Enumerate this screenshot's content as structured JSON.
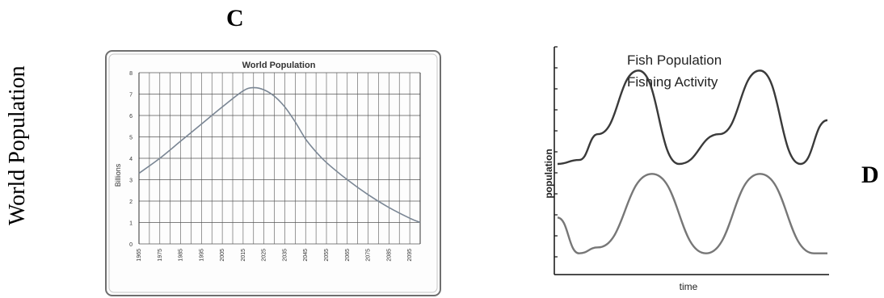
{
  "page": {
    "letter_left": "C",
    "letter_right": "D",
    "side_label": "World Population"
  },
  "chart_data": [
    {
      "type": "line",
      "title": "World Population",
      "xlabel": "",
      "ylabel": "Billions",
      "ylim": [
        0,
        8
      ],
      "yticks": [
        0,
        1,
        2,
        3,
        4,
        5,
        6,
        7,
        8
      ],
      "xlim": [
        1965,
        2100
      ],
      "xticks": [
        1965,
        1975,
        1985,
        1995,
        2005,
        2015,
        2025,
        2035,
        2045,
        2055,
        2065,
        2075,
        2085,
        2095
      ],
      "grid": true,
      "series": [
        {
          "x": [
            1965,
            1975,
            1985,
            1995,
            2005,
            2015,
            2020,
            2025,
            2030,
            2035,
            2040,
            2045,
            2050,
            2055,
            2065,
            2075,
            2085,
            2095,
            2100
          ],
          "y": [
            3.3,
            4.0,
            4.8,
            5.6,
            6.4,
            7.15,
            7.3,
            7.2,
            6.9,
            6.4,
            5.7,
            4.9,
            4.3,
            3.8,
            3.0,
            2.3,
            1.7,
            1.2,
            1.0
          ]
        }
      ],
      "line_color": "#7a8694"
    },
    {
      "type": "line",
      "title": "",
      "xlabel": "time",
      "ylabel": "population",
      "legend": [
        "Fish Population",
        "Fishing Activity"
      ],
      "legend_placement": "top",
      "grid": false,
      "series": [
        {
          "name": "Fish Population",
          "x": [
            0,
            0.08,
            0.15,
            0.3,
            0.45,
            0.6,
            0.75,
            0.9,
            1.0
          ],
          "y": [
            0.5,
            0.52,
            0.65,
            0.97,
            0.5,
            0.65,
            0.97,
            0.5,
            0.72
          ]
        },
        {
          "name": "Fishing Activity",
          "x": [
            0,
            0.08,
            0.15,
            0.35,
            0.55,
            0.75,
            0.95,
            1.0
          ],
          "y": [
            0.23,
            0.05,
            0.08,
            0.45,
            0.05,
            0.45,
            0.05,
            0.05
          ]
        }
      ]
    }
  ]
}
